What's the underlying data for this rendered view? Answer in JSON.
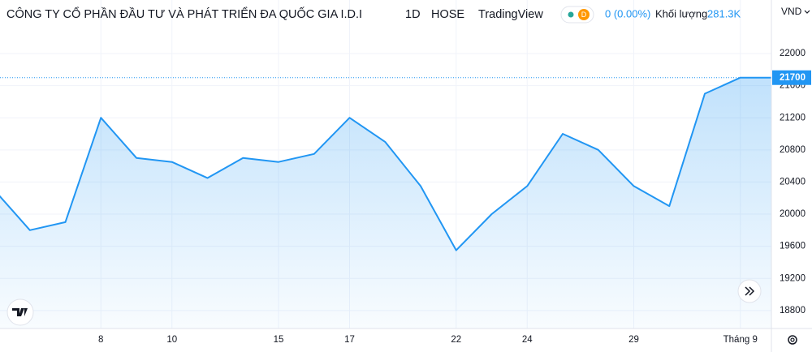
{
  "chart_data": {
    "type": "line",
    "title": "CÔNG TY CỔ PHẦN ĐẦU TƯ VÀ PHÁT TRIỂN ĐA QUỐC GIA I.D.I",
    "interval": "1D",
    "exchange": "HOSE",
    "source": "TradingView",
    "change": "0 (0.00%)",
    "volume_label": "Khối lượng",
    "volume": "281.3K",
    "currency": "VND",
    "last_price": 21700,
    "categories": [
      null,
      null,
      null,
      "8",
      null,
      "10",
      null,
      null,
      "15",
      null,
      "17",
      null,
      null,
      "22",
      null,
      "24",
      null,
      null,
      "29",
      null,
      null,
      "Tháng 9",
      null
    ],
    "series": [
      {
        "color": "#2196f3",
        "values": [
          20300,
          19800,
          19900,
          21200,
          20700,
          20650,
          20450,
          20700,
          20650,
          20750,
          21200,
          20900,
          20350,
          19550,
          20000,
          20350,
          21000,
          20800,
          20350,
          20100,
          21500,
          21700,
          21700
        ]
      }
    ],
    "ylim": [
      18576,
      22667
    ],
    "yticks": [
      18800,
      19200,
      19600,
      20000,
      20400,
      20800,
      21200,
      21600,
      22000
    ],
    "grid": true
  }
}
